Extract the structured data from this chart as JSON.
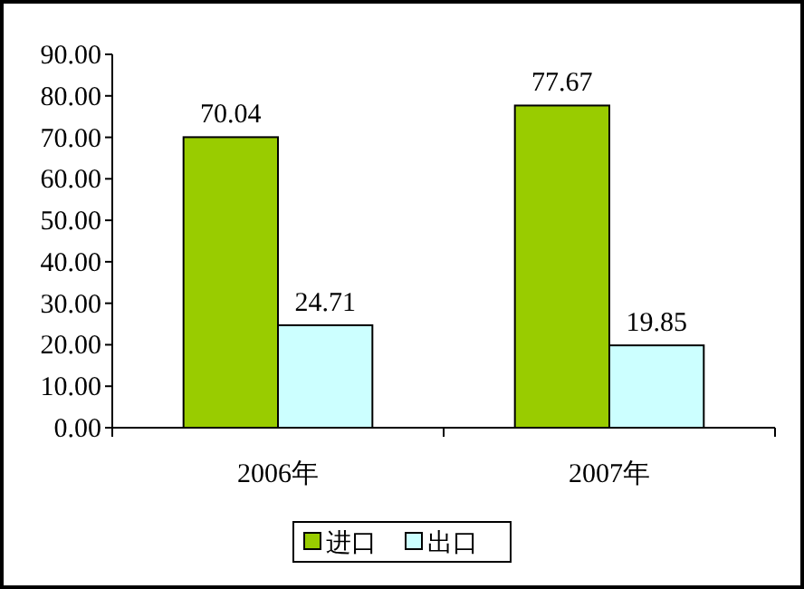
{
  "chart_data": {
    "type": "bar",
    "categories": [
      "2006年",
      "2007年"
    ],
    "series": [
      {
        "name": "进口",
        "color": "#99cc00",
        "values": [
          70.04,
          77.67
        ]
      },
      {
        "name": "出口",
        "color": "#ccffff",
        "values": [
          24.71,
          19.85
        ]
      }
    ],
    "ylim": [
      0,
      90
    ],
    "yticks": [
      {
        "value": 0,
        "label": "0.00"
      },
      {
        "value": 10,
        "label": "10.00"
      },
      {
        "value": 20,
        "label": "20.00"
      },
      {
        "value": 30,
        "label": "30.00"
      },
      {
        "value": 40,
        "label": "40.00"
      },
      {
        "value": 50,
        "label": "50.00"
      },
      {
        "value": 60,
        "label": "60.00"
      },
      {
        "value": 70,
        "label": "70.00"
      },
      {
        "value": 80,
        "label": "80.00"
      },
      {
        "value": 90,
        "label": "90.00"
      }
    ],
    "data_labels": true,
    "legend": "bottom",
    "grid": false
  }
}
